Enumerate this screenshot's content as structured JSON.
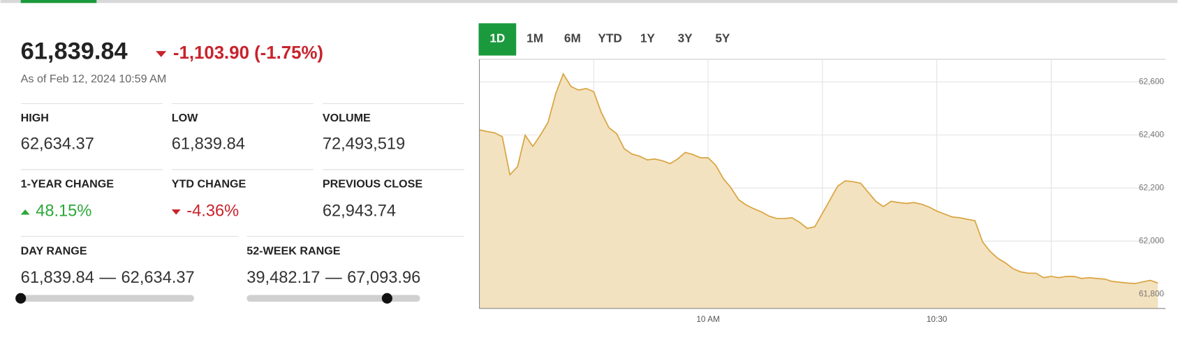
{
  "quote": {
    "price": "61,839.84",
    "change": "-1,103.90 (-1.75%)",
    "change_direction": "down",
    "as_of": "As of Feb 12, 2024 10:59 AM",
    "stats": [
      {
        "label": "HIGH",
        "value": "62,634.37"
      },
      {
        "label": "LOW",
        "value": "61,839.84"
      },
      {
        "label": "VOLUME",
        "value": "72,493,519"
      },
      {
        "label": "1-YEAR CHANGE",
        "value": "48.15%",
        "direction": "up"
      },
      {
        "label": "YTD CHANGE",
        "value": "-4.36%",
        "direction": "down"
      },
      {
        "label": "PREVIOUS CLOSE",
        "value": "62,943.74"
      }
    ],
    "ranges": [
      {
        "label": "DAY RANGE",
        "low": "61,839.84",
        "separator": "—",
        "high": "62,634.37"
      },
      {
        "label": "52-WEEK RANGE",
        "low": "39,482.17",
        "separator": "—",
        "high": "67,093.96"
      }
    ]
  },
  "tabs": [
    "1D",
    "1M",
    "6M",
    "YTD",
    "1Y",
    "3Y",
    "5Y"
  ],
  "selected_tab": "1D",
  "chart_data": {
    "type": "area",
    "color": "#d9a441",
    "fill": "#f3e2bf",
    "grid": true,
    "x": [
      570,
      571,
      572,
      573,
      574,
      575,
      576,
      577,
      578,
      579,
      580,
      581,
      582,
      583,
      584,
      585,
      586,
      587,
      588,
      589,
      590,
      591,
      592,
      593,
      594,
      595,
      596,
      597,
      598,
      599,
      600,
      601,
      602,
      603,
      604,
      605,
      606,
      607,
      608,
      609,
      610,
      611,
      612,
      613,
      614,
      615,
      616,
      617,
      618,
      619,
      620,
      621,
      622,
      623,
      624,
      625,
      626,
      627,
      628,
      629,
      630,
      631,
      632,
      633,
      634,
      635,
      636,
      637,
      638,
      639,
      640,
      641,
      642,
      643,
      644,
      645,
      646,
      647,
      648,
      649,
      650,
      651,
      652,
      653,
      654,
      655,
      656,
      657,
      658,
      659
    ],
    "values": [
      62419,
      62413,
      62408,
      62393,
      62250,
      62280,
      62399,
      62357,
      62399,
      62447,
      62555,
      62630,
      62583,
      62569,
      62575,
      62563,
      62484,
      62427,
      62405,
      62348,
      62328,
      62320,
      62306,
      62309,
      62303,
      62292,
      62309,
      62334,
      62326,
      62314,
      62314,
      62286,
      62235,
      62201,
      62156,
      62136,
      62122,
      62110,
      62094,
      62085,
      62085,
      62088,
      62071,
      62048,
      62054,
      62105,
      62156,
      62207,
      62227,
      62224,
      62218,
      62184,
      62150,
      62130,
      62150,
      62145,
      62142,
      62145,
      62139,
      62128,
      62113,
      62102,
      62091,
      62088,
      62082,
      62077,
      61997,
      61961,
      61935,
      61918,
      61896,
      61884,
      61879,
      61879,
      61862,
      61867,
      61862,
      61867,
      61867,
      61859,
      61862,
      61859,
      61857,
      61848,
      61845,
      61842,
      61840,
      61846,
      61852,
      61842
    ],
    "xlim": [
      570,
      660
    ],
    "xticks": [
      {
        "value": 585,
        "label": null
      },
      {
        "value": 600,
        "label": "10 AM"
      },
      {
        "value": 615,
        "label": null
      },
      {
        "value": 630,
        "label": "10:30"
      },
      {
        "value": 645,
        "label": null
      }
    ],
    "ylim": [
      61746,
      62685
    ],
    "yticks": [
      {
        "value": 61800,
        "label": "61,800"
      },
      {
        "value": 62000,
        "label": "62,000"
      },
      {
        "value": 62200,
        "label": "62,200"
      },
      {
        "value": 62400,
        "label": "62,400"
      },
      {
        "value": 62600,
        "label": "62,600"
      }
    ]
  }
}
